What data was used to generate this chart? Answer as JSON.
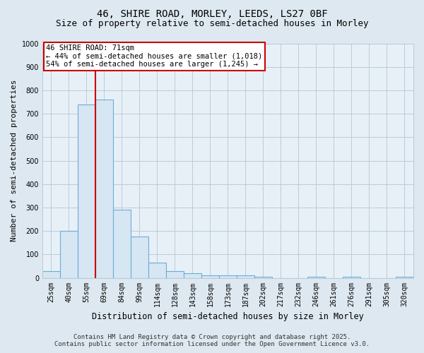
{
  "title_line1": "46, SHIRE ROAD, MORLEY, LEEDS, LS27 0BF",
  "title_line2": "Size of property relative to semi-detached houses in Morley",
  "categories": [
    "25sqm",
    "40sqm",
    "55sqm",
    "69sqm",
    "84sqm",
    "99sqm",
    "114sqm",
    "128sqm",
    "143sqm",
    "158sqm",
    "173sqm",
    "187sqm",
    "202sqm",
    "217sqm",
    "232sqm",
    "246sqm",
    "261sqm",
    "276sqm",
    "291sqm",
    "305sqm",
    "320sqm"
  ],
  "values": [
    30,
    200,
    740,
    760,
    290,
    175,
    65,
    30,
    20,
    10,
    10,
    10,
    5,
    0,
    0,
    5,
    0,
    5,
    0,
    0,
    5
  ],
  "bar_color": "#d6e6f2",
  "bar_edge_color": "#6aaed6",
  "ylabel": "Number of semi-detached properties",
  "xlabel": "Distribution of semi-detached houses by size in Morley",
  "ylim": [
    0,
    1000
  ],
  "yticks": [
    0,
    100,
    200,
    300,
    400,
    500,
    600,
    700,
    800,
    900,
    1000
  ],
  "property_line_x": 2.5,
  "property_line_color": "#cc0000",
  "annotation_text_line1": "46 SHIRE ROAD: 71sqm",
  "annotation_text_line2": "← 44% of semi-detached houses are smaller (1,018)",
  "annotation_text_line3": "54% of semi-detached houses are larger (1,245) →",
  "annotation_box_color": "#ffffff",
  "annotation_box_edge_color": "#cc0000",
  "footer_line1": "Contains HM Land Registry data © Crown copyright and database right 2025.",
  "footer_line2": "Contains public sector information licensed under the Open Government Licence v3.0.",
  "background_color": "#dde8f0",
  "plot_background_color": "#e8f0f7",
  "grid_color": "#b8ccd8",
  "title_fontsize": 10,
  "subtitle_fontsize": 9,
  "xlabel_fontsize": 8.5,
  "ylabel_fontsize": 8,
  "tick_fontsize": 7,
  "annotation_fontsize": 7.5,
  "footer_fontsize": 6.5
}
